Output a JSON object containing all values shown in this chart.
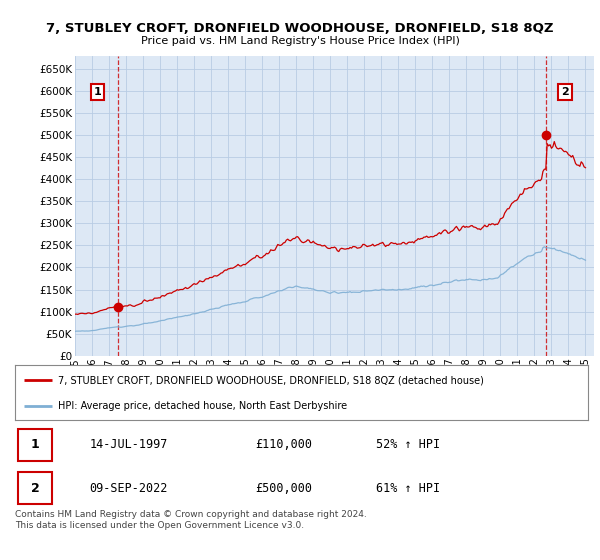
{
  "title": "7, STUBLEY CROFT, DRONFIELD WOODHOUSE, DRONFIELD, S18 8QZ",
  "subtitle": "Price paid vs. HM Land Registry's House Price Index (HPI)",
  "red_label": "7, STUBLEY CROFT, DRONFIELD WOODHOUSE, DRONFIELD, S18 8QZ (detached house)",
  "blue_label": "HPI: Average price, detached house, North East Derbyshire",
  "footer": "Contains HM Land Registry data © Crown copyright and database right 2024.\nThis data is licensed under the Open Government Licence v3.0.",
  "sale1_date": "14-JUL-1997",
  "sale1_price": "£110,000",
  "sale1_hpi": "52% ↑ HPI",
  "sale2_date": "09-SEP-2022",
  "sale2_price": "£500,000",
  "sale2_hpi": "61% ↑ HPI",
  "ylim_min": 0,
  "ylim_max": 680000,
  "xlim_min": 1995,
  "xlim_max": 2025.5,
  "background_color": "#ffffff",
  "plot_bg_color": "#dde8f5",
  "grid_color": "#b8cce4",
  "red_color": "#cc0000",
  "blue_color": "#7fafd4",
  "sale1_year": 1997.54,
  "sale1_value": 110000,
  "sale2_year": 2022.69,
  "sale2_value": 500000
}
